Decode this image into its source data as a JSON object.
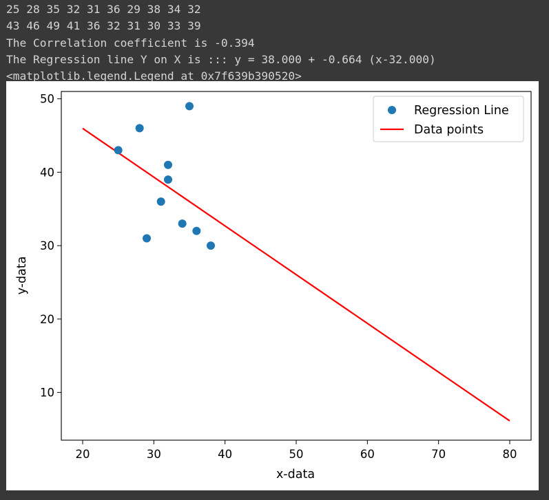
{
  "output_lines": [
    "25 28 35 32 31 36 29 38 34 32",
    "43 46 49 41 36 32 31 30 33 39",
    "The Correlation coefficient is -0.394",
    "The Regression line Y on X is ::: y = 38.000 + -0.664 (x-32.000)",
    "<matplotlib.legend.Legend at 0x7f639b390520>"
  ],
  "colors": {
    "background": "#383838",
    "text": "#d4d4d4",
    "scatter": "#1f77b4",
    "line": "#ff0000",
    "figure": "#ffffff"
  },
  "chart_data": {
    "type": "scatter",
    "xlabel": "x-data",
    "ylabel": "y-data",
    "xlim": [
      17,
      83
    ],
    "ylim": [
      3.5,
      51
    ],
    "x_ticks": [
      20,
      30,
      40,
      50,
      60,
      70,
      80
    ],
    "y_ticks": [
      10,
      20,
      30,
      40,
      50
    ],
    "grid": false,
    "legend_position": "top-right",
    "series": [
      {
        "name": "Regression Line",
        "kind": "scatter",
        "color": "#1f77b4",
        "x": [
          25,
          28,
          35,
          32,
          31,
          36,
          29,
          38,
          34,
          32
        ],
        "y": [
          43,
          46,
          49,
          41,
          36,
          32,
          31,
          30,
          33,
          39
        ]
      },
      {
        "name": "Data points",
        "kind": "line",
        "color": "#ff0000",
        "x": [
          20,
          80
        ],
        "y": [
          45.968,
          6.128
        ]
      }
    ]
  }
}
